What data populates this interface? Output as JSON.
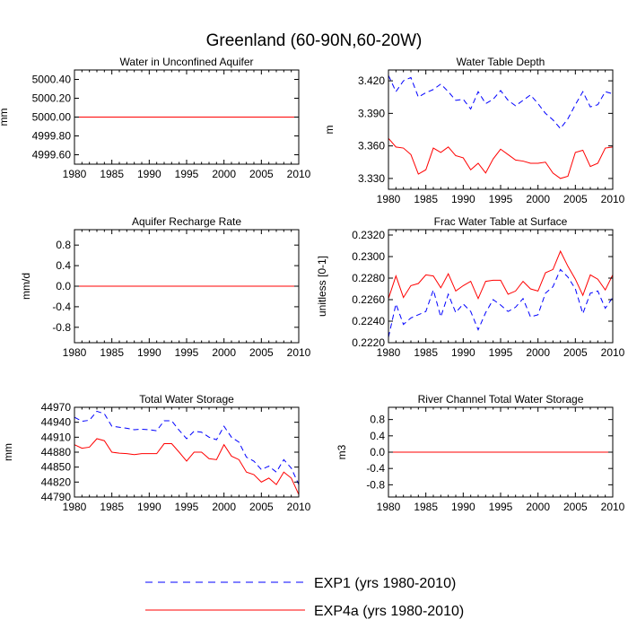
{
  "page_title": "Greenland (60-90N,60-20W)",
  "legend": [
    {
      "label": "EXP1 (yrs 1980-2010)",
      "color": "#0000ff",
      "style": "dashed"
    },
    {
      "label": "EXP4a (yrs 1980-2010)",
      "color": "#ff0000",
      "style": "solid"
    }
  ],
  "chart_data": [
    {
      "type": "line",
      "title": "Water in Unconfined Aquifer",
      "ylabel": "mm",
      "xlim": [
        1980,
        2010
      ],
      "ylim": [
        4999.5,
        5000.5
      ],
      "xticks": [
        1980,
        1985,
        1990,
        1995,
        2000,
        2005,
        2010
      ],
      "yticks": [
        4999.6,
        4999.8,
        5000.0,
        5000.2,
        5000.4
      ],
      "yticklabels": [
        "4999.60",
        "4999.80",
        "5000.00",
        "5000.20",
        "5000.40"
      ],
      "series": [
        {
          "name": "EXP1 (yrs 1980-2010)",
          "x": [
            1980,
            2010
          ],
          "y": [
            5000.0,
            5000.0
          ]
        },
        {
          "name": "EXP4a (yrs 1980-2010)",
          "x": [
            1980,
            2010
          ],
          "y": [
            5000.0,
            5000.0
          ]
        }
      ]
    },
    {
      "type": "line",
      "title": "Water Table Depth",
      "ylabel": "m",
      "xlim": [
        1980,
        2010
      ],
      "ylim": [
        3.32,
        3.43
      ],
      "xticks": [
        1980,
        1985,
        1990,
        1995,
        2000,
        2005,
        2010
      ],
      "yticks": [
        3.33,
        3.36,
        3.39,
        3.42
      ],
      "yticklabels": [
        "3.330",
        "3.360",
        "3.390",
        "3.420"
      ],
      "series": [
        {
          "name": "EXP1 (yrs 1980-2010)",
          "x": [
            1980,
            1981,
            1982,
            1983,
            1984,
            1985,
            1986,
            1987,
            1988,
            1989,
            1990,
            1991,
            1992,
            1993,
            1994,
            1995,
            1996,
            1997,
            1998,
            1999,
            2000,
            2001,
            2002,
            2003,
            2004,
            2005,
            2006,
            2007,
            2008,
            2009,
            2010
          ],
          "y": [
            3.425,
            3.41,
            3.42,
            3.423,
            3.405,
            3.409,
            3.412,
            3.417,
            3.41,
            3.402,
            3.403,
            3.394,
            3.41,
            3.399,
            3.403,
            3.411,
            3.402,
            3.397,
            3.402,
            3.407,
            3.399,
            3.39,
            3.384,
            3.376,
            3.385,
            3.398,
            3.41,
            3.396,
            3.398,
            3.41,
            3.408
          ]
        },
        {
          "name": "EXP4a (yrs 1980-2010)",
          "x": [
            1980,
            1981,
            1982,
            1983,
            1984,
            1985,
            1986,
            1987,
            1988,
            1989,
            1990,
            1991,
            1992,
            1993,
            1994,
            1995,
            1996,
            1997,
            1998,
            1999,
            2000,
            2001,
            2002,
            2003,
            2004,
            2005,
            2006,
            2007,
            2008,
            2009,
            2010
          ],
          "y": [
            3.367,
            3.359,
            3.358,
            3.352,
            3.334,
            3.338,
            3.358,
            3.354,
            3.359,
            3.351,
            3.349,
            3.338,
            3.344,
            3.335,
            3.348,
            3.357,
            3.352,
            3.347,
            3.346,
            3.344,
            3.344,
            3.345,
            3.335,
            3.33,
            3.332,
            3.354,
            3.356,
            3.341,
            3.344,
            3.358,
            3.359
          ]
        }
      ]
    },
    {
      "type": "line",
      "title": "Aquifer Recharge Rate",
      "ylabel": "mm/d",
      "xlim": [
        1980,
        2010
      ],
      "ylim": [
        -1.1,
        1.1
      ],
      "xticks": [
        1980,
        1985,
        1990,
        1995,
        2000,
        2005,
        2010
      ],
      "yticks": [
        -0.8,
        -0.4,
        0.0,
        0.4,
        0.8
      ],
      "yticklabels": [
        "-0.8",
        "-0.4",
        "0.0",
        "0.4",
        "0.8"
      ],
      "series": [
        {
          "name": "EXP1 (yrs 1980-2010)",
          "x": [
            1980,
            2010
          ],
          "y": [
            0.0,
            0.0
          ]
        },
        {
          "name": "EXP4a (yrs 1980-2010)",
          "x": [
            1980,
            2010
          ],
          "y": [
            0.0,
            0.0
          ]
        }
      ]
    },
    {
      "type": "line",
      "title": "Frac Water Table at Surface",
      "ylabel": "unitless [0-1]",
      "xlim": [
        1980,
        2010
      ],
      "ylim": [
        0.222,
        0.2325
      ],
      "xticks": [
        1980,
        1985,
        1990,
        1995,
        2000,
        2005,
        2010
      ],
      "yticks": [
        0.222,
        0.224,
        0.226,
        0.228,
        0.23,
        0.232
      ],
      "yticklabels": [
        "0.2220",
        "0.2240",
        "0.2260",
        "0.2280",
        "0.2300",
        "0.2320"
      ],
      "series": [
        {
          "name": "EXP1 (yrs 1980-2010)",
          "x": [
            1980,
            1981,
            1982,
            1983,
            1984,
            1985,
            1986,
            1987,
            1988,
            1989,
            1990,
            1991,
            1992,
            1993,
            1994,
            1995,
            1996,
            1997,
            1998,
            1999,
            2000,
            2001,
            2002,
            2003,
            2004,
            2005,
            2006,
            2007,
            2008,
            2009,
            2010
          ],
          "y": [
            0.2225,
            0.2256,
            0.2237,
            0.2243,
            0.2246,
            0.2249,
            0.2269,
            0.2244,
            0.2265,
            0.2248,
            0.2256,
            0.2249,
            0.2232,
            0.2248,
            0.226,
            0.2255,
            0.2249,
            0.2253,
            0.2261,
            0.2244,
            0.2246,
            0.2266,
            0.2272,
            0.2288,
            0.2281,
            0.227,
            0.2247,
            0.2266,
            0.2268,
            0.2252,
            0.2262
          ]
        },
        {
          "name": "EXP4a (yrs 1980-2010)",
          "x": [
            1980,
            1981,
            1982,
            1983,
            1984,
            1985,
            1986,
            1987,
            1988,
            1989,
            1990,
            1991,
            1992,
            1993,
            1994,
            1995,
            1996,
            1997,
            1998,
            1999,
            2000,
            2001,
            2002,
            2003,
            2004,
            2005,
            2006,
            2007,
            2008,
            2009,
            2010
          ],
          "y": [
            0.2261,
            0.2282,
            0.2262,
            0.2273,
            0.2275,
            0.2283,
            0.2282,
            0.2271,
            0.2284,
            0.2268,
            0.2273,
            0.2277,
            0.2261,
            0.2277,
            0.2278,
            0.2278,
            0.2265,
            0.2268,
            0.2277,
            0.227,
            0.2268,
            0.2285,
            0.2288,
            0.2305,
            0.2291,
            0.2279,
            0.2264,
            0.2283,
            0.2279,
            0.2269,
            0.2283
          ]
        }
      ]
    },
    {
      "type": "line",
      "title": "Total Water Storage",
      "ylabel": "mm",
      "xlim": [
        1980,
        2010
      ],
      "ylim": [
        44790,
        44970
      ],
      "xticks": [
        1980,
        1985,
        1990,
        1995,
        2000,
        2005,
        2010
      ],
      "yticks": [
        44790,
        44820,
        44850,
        44880,
        44910,
        44940,
        44970
      ],
      "yticklabels": [
        "44790",
        "44820",
        "44850",
        "44880",
        "44910",
        "44940",
        "44970"
      ],
      "series": [
        {
          "name": "EXP1 (yrs 1980-2010)",
          "x": [
            1980,
            1981,
            1982,
            1983,
            1984,
            1985,
            1986,
            1987,
            1988,
            1989,
            1990,
            1991,
            1992,
            1993,
            1994,
            1995,
            1996,
            1997,
            1998,
            1999,
            2000,
            2001,
            2002,
            2003,
            2004,
            2005,
            2006,
            2007,
            2008,
            2009,
            2010
          ],
          "y": [
            44950,
            44942,
            44944,
            44962,
            44957,
            44932,
            44930,
            44928,
            44925,
            44926,
            44925,
            44923,
            44943,
            44943,
            44924,
            44907,
            44922,
            44920,
            44910,
            44905,
            44932,
            44910,
            44900,
            44870,
            44862,
            44845,
            44852,
            44840,
            44865,
            44848,
            44815
          ]
        },
        {
          "name": "EXP4a (yrs 1980-2010)",
          "x": [
            1980,
            1981,
            1982,
            1983,
            1984,
            1985,
            1986,
            1987,
            1988,
            1989,
            1990,
            1991,
            1992,
            1993,
            1994,
            1995,
            1996,
            1997,
            1998,
            1999,
            2000,
            2001,
            2002,
            2003,
            2004,
            2005,
            2006,
            2007,
            2008,
            2009,
            2010
          ],
          "y": [
            44895,
            44888,
            44890,
            44907,
            44903,
            44880,
            44878,
            44877,
            44875,
            44877,
            44877,
            44877,
            44897,
            44897,
            44880,
            44862,
            44880,
            44880,
            44867,
            44865,
            44895,
            44872,
            44865,
            44840,
            44835,
            44820,
            44828,
            44815,
            44840,
            44828,
            44795
          ]
        }
      ]
    },
    {
      "type": "line",
      "title": "River Channel Total Water Storage",
      "ylabel": "m3",
      "xlim": [
        1980,
        2010
      ],
      "ylim": [
        -1.1,
        1.1
      ],
      "xticks": [
        1980,
        1985,
        1990,
        1995,
        2000,
        2005,
        2010
      ],
      "yticks": [
        -0.8,
        -0.4,
        0.0,
        0.4,
        0.8
      ],
      "yticklabels": [
        "-0.8",
        "-0.4",
        "0.0",
        "0.4",
        "0.8"
      ],
      "series": [
        {
          "name": "EXP1 (yrs 1980-2010)",
          "x": [
            1980,
            2010
          ],
          "y": [
            0.0,
            0.0
          ]
        },
        {
          "name": "EXP4a (yrs 1980-2010)",
          "x": [
            1980,
            2010
          ],
          "y": [
            0.0,
            0.0
          ]
        }
      ]
    }
  ]
}
